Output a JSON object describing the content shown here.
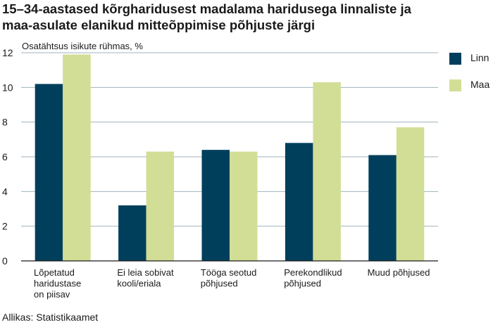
{
  "title_lines": [
    "15–34-aastased kõrgharidusest madalama haridusega linnaliste ja",
    "maa-asulate elanikud mitteõppimise põhjuste järgi"
  ],
  "source": "Allikas: Statistikaamet",
  "chart_data": {
    "type": "bar",
    "title": "15–34-aastased kõrgharidusest madalama haridusega linnaliste ja maa-asulate elanikud mitteõppimise põhjuste järgi",
    "ylabel": "Osatähtsus isikute rühmas, %",
    "xlabel": "",
    "ylim": [
      0,
      12
    ],
    "yticks": [
      0,
      2,
      4,
      6,
      8,
      10,
      12
    ],
    "grid": true,
    "legend_position": "top-right",
    "categories": [
      [
        "Lõpetatud",
        "haridustase",
        "on piisav"
      ],
      [
        "Ei leia sobivat",
        "kooli/eriala"
      ],
      [
        "Tööga seotud",
        "põhjused"
      ],
      [
        "Perekondlikud",
        "põhjused"
      ],
      [
        "Muud põhjused"
      ]
    ],
    "series": [
      {
        "name": "Linn",
        "color": "#003f5c",
        "values": [
          10.2,
          3.2,
          6.4,
          6.8,
          6.1
        ]
      },
      {
        "name": "Maa",
        "color": "#d2de96",
        "values": [
          11.9,
          6.3,
          6.3,
          10.3,
          7.7
        ]
      }
    ]
  }
}
